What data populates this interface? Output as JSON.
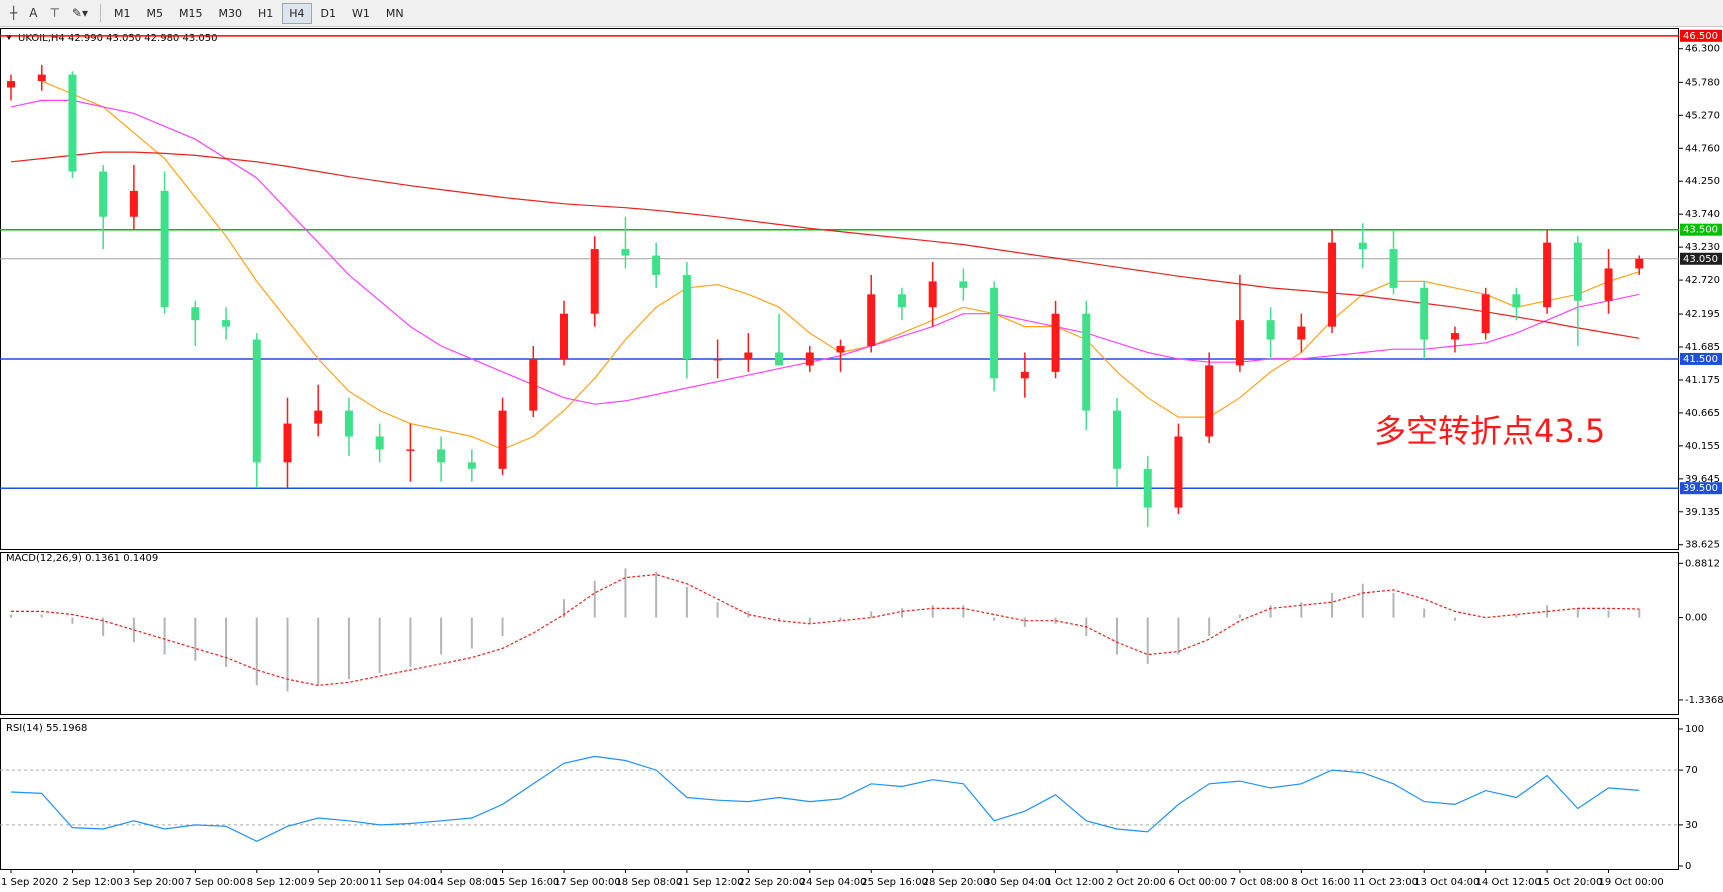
{
  "toolbar": {
    "tools": [
      "A"
    ],
    "timeframes": [
      "M1",
      "M5",
      "M15",
      "M30",
      "H1",
      "H4",
      "D1",
      "W1",
      "MN"
    ]
  },
  "chart_data": [
    {
      "type": "candlestick",
      "title": "UKOIL,H4  42.990 43.050 42.980 43.050",
      "categories": [
        "1 Sep 2020",
        null,
        "2 Sep 12:00",
        null,
        "3 Sep 20:00",
        null,
        "7 Sep 00:00",
        null,
        "8 Sep 12:00",
        null,
        "9 Sep 20:00",
        null,
        "11 Sep 04:00",
        null,
        "14 Sep 08:00",
        null,
        "15 Sep 16:00",
        null,
        "17 Sep 00:00",
        null,
        "18 Sep 08:00",
        null,
        "21 Sep 12:00",
        null,
        "22 Sep 20:00",
        null,
        "24 Sep 04:00",
        null,
        "25 Sep 16:00",
        null,
        "28 Sep 20:00",
        null,
        "30 Sep 04:00",
        null,
        "1 Oct 12:00",
        null,
        "2 Oct 20:00",
        null,
        "6 Oct 00:00",
        null,
        "7 Oct 08:00",
        null,
        "8 Oct 16:00",
        null,
        "11 Oct 23:00",
        null,
        "13 Oct 04:00",
        null,
        "14 Oct 12:00",
        null,
        "15 Oct 20:00",
        null,
        "19 Oct 00:00",
        null
      ],
      "open": [
        45.7,
        45.8,
        45.9,
        44.4,
        43.7,
        44.1,
        42.3,
        42.1,
        41.8,
        39.9,
        40.5,
        40.7,
        40.3,
        40.1,
        40.1,
        39.9,
        39.8,
        40.7,
        41.5,
        42.2,
        43.2,
        43.1,
        42.8,
        41.5,
        41.5,
        41.6,
        41.4,
        41.6,
        41.7,
        42.5,
        42.3,
        42.7,
        42.6,
        41.2,
        41.3,
        42.2,
        40.7,
        39.8,
        39.2,
        40.3,
        41.4,
        42.1,
        41.8,
        42.0,
        43.3,
        43.2,
        42.6,
        41.8,
        41.9,
        42.5,
        42.3,
        43.3,
        42.4,
        42.9
      ],
      "high": [
        45.9,
        46.05,
        45.95,
        44.5,
        44.5,
        44.4,
        42.4,
        42.3,
        41.9,
        40.9,
        41.1,
        40.9,
        40.5,
        40.5,
        40.3,
        40.1,
        40.9,
        41.7,
        42.4,
        43.4,
        43.7,
        43.3,
        43.0,
        41.8,
        41.9,
        42.2,
        41.7,
        41.8,
        42.8,
        42.6,
        43.0,
        42.9,
        42.7,
        41.6,
        42.4,
        42.4,
        40.9,
        40.0,
        40.5,
        41.6,
        42.8,
        42.3,
        42.2,
        43.5,
        43.6,
        43.5,
        42.7,
        42.0,
        42.6,
        42.6,
        43.5,
        43.4,
        43.2,
        43.1
      ],
      "low": [
        45.5,
        45.65,
        44.3,
        43.2,
        43.5,
        42.2,
        41.7,
        41.8,
        39.5,
        39.5,
        40.3,
        40.0,
        39.9,
        39.6,
        39.6,
        39.6,
        39.7,
        40.6,
        41.4,
        42.0,
        42.9,
        42.6,
        41.2,
        41.2,
        41.3,
        41.4,
        41.3,
        41.3,
        41.6,
        42.1,
        42.0,
        42.4,
        41.0,
        40.9,
        41.2,
        40.4,
        39.5,
        38.9,
        39.1,
        40.2,
        41.3,
        41.5,
        41.6,
        41.9,
        42.9,
        42.5,
        41.5,
        41.6,
        41.8,
        42.1,
        42.2,
        41.7,
        42.2,
        42.8
      ],
      "close": [
        45.8,
        45.9,
        44.4,
        43.7,
        44.1,
        42.3,
        42.1,
        42.0,
        39.9,
        40.5,
        40.7,
        40.3,
        40.1,
        40.1,
        39.9,
        39.8,
        40.7,
        41.5,
        42.2,
        43.2,
        43.1,
        42.8,
        41.5,
        41.5,
        41.6,
        41.4,
        41.6,
        41.7,
        42.5,
        42.3,
        42.7,
        42.6,
        41.2,
        41.3,
        42.2,
        40.7,
        39.8,
        39.2,
        40.3,
        41.4,
        42.1,
        41.8,
        42.0,
        43.3,
        43.2,
        42.6,
        41.8,
        41.9,
        42.5,
        42.3,
        43.3,
        42.4,
        42.9,
        43.05
      ],
      "up_color": "#ff1a1a",
      "down_color": "#3ee08a",
      "lines": [
        {
          "color": "#ffa31a",
          "values": [
            null,
            45.8,
            45.6,
            45.4,
            45.0,
            44.6,
            44.0,
            43.4,
            42.7,
            42.1,
            41.5,
            41.0,
            40.7,
            40.5,
            40.4,
            40.3,
            40.1,
            40.3,
            40.7,
            41.2,
            41.8,
            42.3,
            42.6,
            42.65,
            42.5,
            42.3,
            41.9,
            41.6,
            41.7,
            41.9,
            42.1,
            42.3,
            42.2,
            42.0,
            42.0,
            41.8,
            41.3,
            40.9,
            40.6,
            40.6,
            40.9,
            41.3,
            41.6,
            42.1,
            42.5,
            42.7,
            42.7,
            42.6,
            42.5,
            42.3,
            42.4,
            42.5,
            42.7,
            42.85
          ]
        },
        {
          "color": "#ff40ff",
          "values": [
            45.4,
            45.5,
            45.5,
            45.4,
            45.3,
            45.1,
            44.9,
            44.6,
            44.3,
            43.8,
            43.3,
            42.8,
            42.4,
            42.0,
            41.7,
            41.5,
            41.3,
            41.1,
            40.9,
            40.8,
            40.85,
            40.95,
            41.05,
            41.15,
            41.25,
            41.35,
            41.45,
            41.55,
            41.7,
            41.85,
            42.0,
            42.2,
            42.2,
            42.1,
            42.0,
            41.9,
            41.75,
            41.6,
            41.5,
            41.45,
            41.45,
            41.5,
            41.5,
            41.55,
            41.6,
            41.65,
            41.65,
            41.7,
            41.75,
            41.9,
            42.1,
            42.3,
            42.4,
            42.5
          ]
        },
        {
          "color": "#e8231e",
          "values": [
            44.55,
            44.6,
            44.65,
            44.7,
            44.7,
            44.68,
            44.65,
            44.6,
            44.55,
            44.48,
            44.4,
            44.32,
            44.25,
            44.18,
            44.12,
            44.06,
            44.0,
            43.95,
            43.9,
            43.87,
            43.84,
            43.8,
            43.75,
            43.7,
            43.64,
            43.58,
            43.52,
            43.47,
            43.42,
            43.37,
            43.32,
            43.27,
            43.2,
            43.13,
            43.06,
            42.99,
            42.92,
            42.85,
            42.78,
            42.72,
            42.66,
            42.6,
            42.56,
            42.52,
            42.48,
            42.42,
            42.36,
            42.3,
            42.23,
            42.15,
            42.07,
            41.98,
            41.9,
            41.82
          ]
        }
      ],
      "hlines": [
        {
          "value": 46.5,
          "label": "46.500",
          "color": "#ff0000"
        },
        {
          "value": 43.5,
          "label": "43.500",
          "color": "#00c000"
        },
        {
          "value": 43.05,
          "label": "43.050",
          "color": "#a0a0a0"
        },
        {
          "value": 41.5,
          "label": "41.500",
          "color": "#1f4fd8"
        },
        {
          "value": 39.5,
          "label": "39.500",
          "color": "#1f4fd8"
        }
      ],
      "annotation": {
        "text": "多空转折点43.5",
        "color": "#ff1a1a"
      },
      "ylim": [
        38.59,
        46.59
      ],
      "yticks": [
        38.625,
        39.135,
        39.645,
        40.155,
        40.665,
        41.175,
        41.685,
        42.195,
        {
          "value": 42.72,
          "label": "42.720"
        },
        {
          "value": 43.23,
          "label": "43.230"
        },
        {
          "value": 43.74,
          "label": "43.740"
        },
        {
          "value": 44.25,
          "label": "44.250"
        },
        {
          "value": 44.76,
          "label": "44.760"
        },
        {
          "value": 45.27,
          "label": "45.270"
        },
        {
          "value": 45.78,
          "label": "45.780"
        },
        {
          "value": 46.3,
          "label": "46.300"
        }
      ],
      "grid": false
    },
    {
      "type": "macd",
      "title": "MACD(12,26,9) 0.1361 0.1409",
      "histogram": [
        0.05,
        0.05,
        -0.1,
        -0.3,
        -0.4,
        -0.6,
        -0.7,
        -0.8,
        -1.1,
        -1.2,
        -1.1,
        -1.0,
        -0.9,
        -0.8,
        -0.6,
        -0.5,
        -0.3,
        0.0,
        0.3,
        0.6,
        0.8,
        0.75,
        0.5,
        0.25,
        0.1,
        -0.05,
        -0.1,
        -0.05,
        0.1,
        0.15,
        0.2,
        0.2,
        -0.05,
        -0.15,
        -0.1,
        -0.3,
        -0.6,
        -0.75,
        -0.6,
        -0.3,
        0.05,
        0.2,
        0.25,
        0.4,
        0.55,
        0.4,
        0.15,
        -0.05,
        0.0,
        0.05,
        0.2,
        0.15,
        0.12,
        0.14
      ],
      "signal": [
        0.1,
        0.1,
        0.05,
        -0.05,
        -0.2,
        -0.35,
        -0.5,
        -0.65,
        -0.85,
        -1.0,
        -1.1,
        -1.05,
        -0.95,
        -0.85,
        -0.75,
        -0.65,
        -0.5,
        -0.25,
        0.05,
        0.4,
        0.65,
        0.7,
        0.55,
        0.3,
        0.05,
        -0.05,
        -0.1,
        -0.05,
        0.0,
        0.1,
        0.15,
        0.15,
        0.05,
        -0.05,
        -0.05,
        -0.15,
        -0.4,
        -0.6,
        -0.55,
        -0.35,
        -0.05,
        0.15,
        0.2,
        0.25,
        0.4,
        0.45,
        0.3,
        0.1,
        0.0,
        0.05,
        0.1,
        0.15,
        0.15,
        0.14
      ],
      "histogram_color": "#b4b4b4",
      "signal_color": "#e8231e",
      "ylim": [
        -1.5,
        1.0
      ],
      "yticks": [
        -1.3368,
        {
          "value": 0,
          "label": "0.00"
        },
        0.8812
      ]
    },
    {
      "type": "line",
      "title": "RSI(14) 55.1968",
      "values": [
        54,
        53,
        28,
        27,
        33,
        27,
        30,
        29,
        18,
        29,
        35,
        33,
        30,
        31,
        33,
        35,
        45,
        60,
        75,
        80,
        77,
        70,
        50,
        48,
        47,
        50,
        47,
        49,
        60,
        58,
        63,
        60,
        33,
        40,
        52,
        33,
        27,
        25,
        45,
        60,
        62,
        57,
        60,
        70,
        68,
        60,
        47,
        45,
        55,
        50,
        66,
        42,
        57,
        55.2
      ],
      "color": "#1e90ff",
      "ylim": [
        0,
        100
      ],
      "yticks": [
        0,
        30,
        70,
        100
      ]
    }
  ]
}
